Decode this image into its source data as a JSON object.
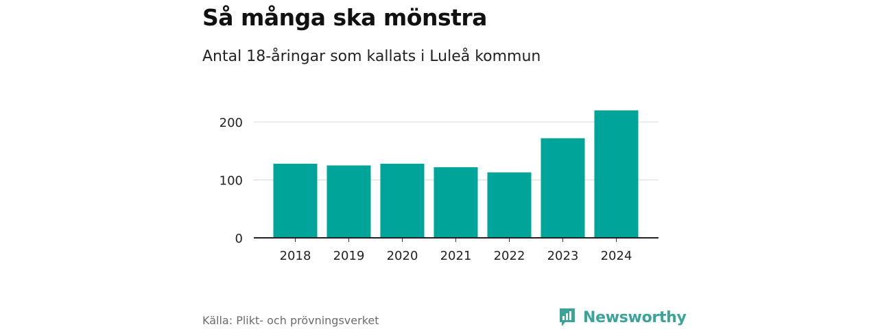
{
  "chart_data": {
    "type": "bar",
    "title": "Så många ska mönstra",
    "subtitle": "Antal 18-åringar som kallats i Luleå kommun",
    "categories": [
      "2018",
      "2019",
      "2020",
      "2021",
      "2022",
      "2023",
      "2024"
    ],
    "values": [
      128,
      125,
      128,
      122,
      113,
      172,
      220
    ],
    "xlabel": "",
    "ylabel": "",
    "ylim": [
      0,
      240
    ],
    "yticks": [
      0,
      100,
      200
    ],
    "grid": true,
    "legend": "none",
    "bar_color": "#00a499"
  },
  "footer": {
    "source": "Källa: Plikt- och prövningsverket",
    "brand": "Newsworthy",
    "brand_icon": "newsworthy-logo-icon",
    "brand_color": "#3aa39a"
  }
}
